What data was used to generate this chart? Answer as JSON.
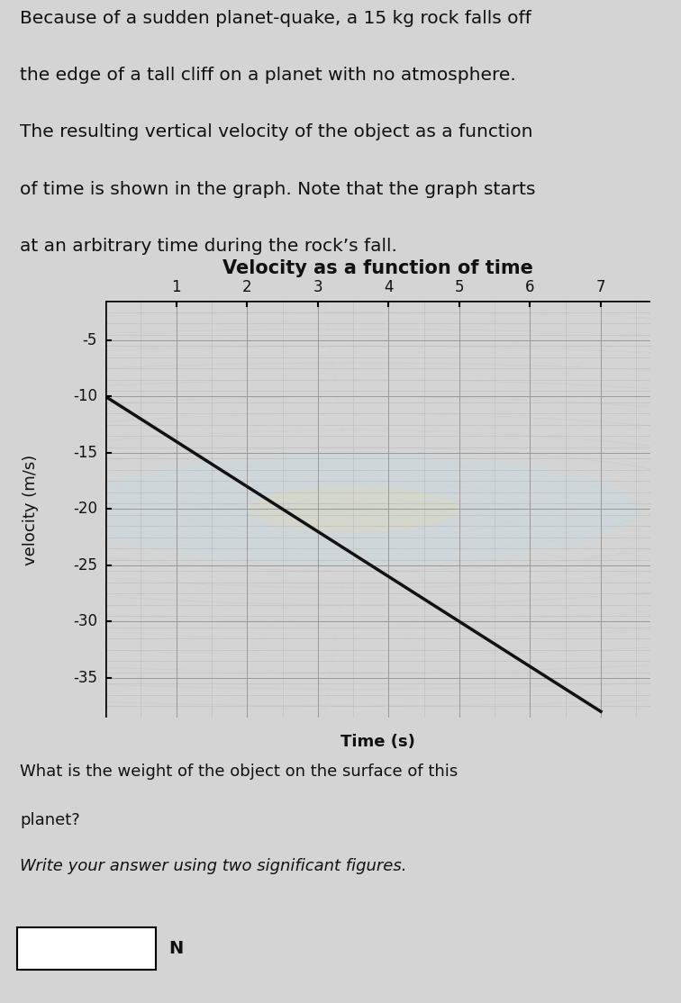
{
  "title": "Velocity as a function of time",
  "xlabel": "Time (s)",
  "ylabel": "velocity (m/s)",
  "paragraph_lines": [
    "Because of a sudden planet-quake, a 15 kg rock falls off",
    "the edge of a tall cliff on a planet with no atmosphere.",
    "The resulting vertical velocity of the object as a function",
    "of time is shown in the graph. Note that the graph starts",
    "at an arbitrary time during the rock’s fall."
  ],
  "question_line1": "What is the weight of the object on the surface of this",
  "question_line2": "planet?",
  "question_line3": "Write your answer using two significant figures.",
  "answer_label": "N",
  "line_x": [
    0,
    7
  ],
  "line_y": [
    -10,
    -38
  ],
  "x_ticks": [
    1,
    2,
    3,
    4,
    5,
    6,
    7
  ],
  "y_ticks": [
    -5,
    -10,
    -15,
    -20,
    -25,
    -30,
    -35
  ],
  "xlim": [
    0,
    7.7
  ],
  "ylim": [
    -38.5,
    -1.5
  ],
  "line_color": "#111111",
  "line_width": 2.5,
  "grid_major_color": "#999999",
  "grid_minor_color": "#bbbbbb",
  "bg_color": "#d4d4d4",
  "plot_bg_color": "#d4d4d4",
  "text_color": "#111111",
  "title_fontsize": 15,
  "label_fontsize": 13,
  "tick_fontsize": 12,
  "paragraph_fontsize": 14.5,
  "question_fontsize": 13
}
